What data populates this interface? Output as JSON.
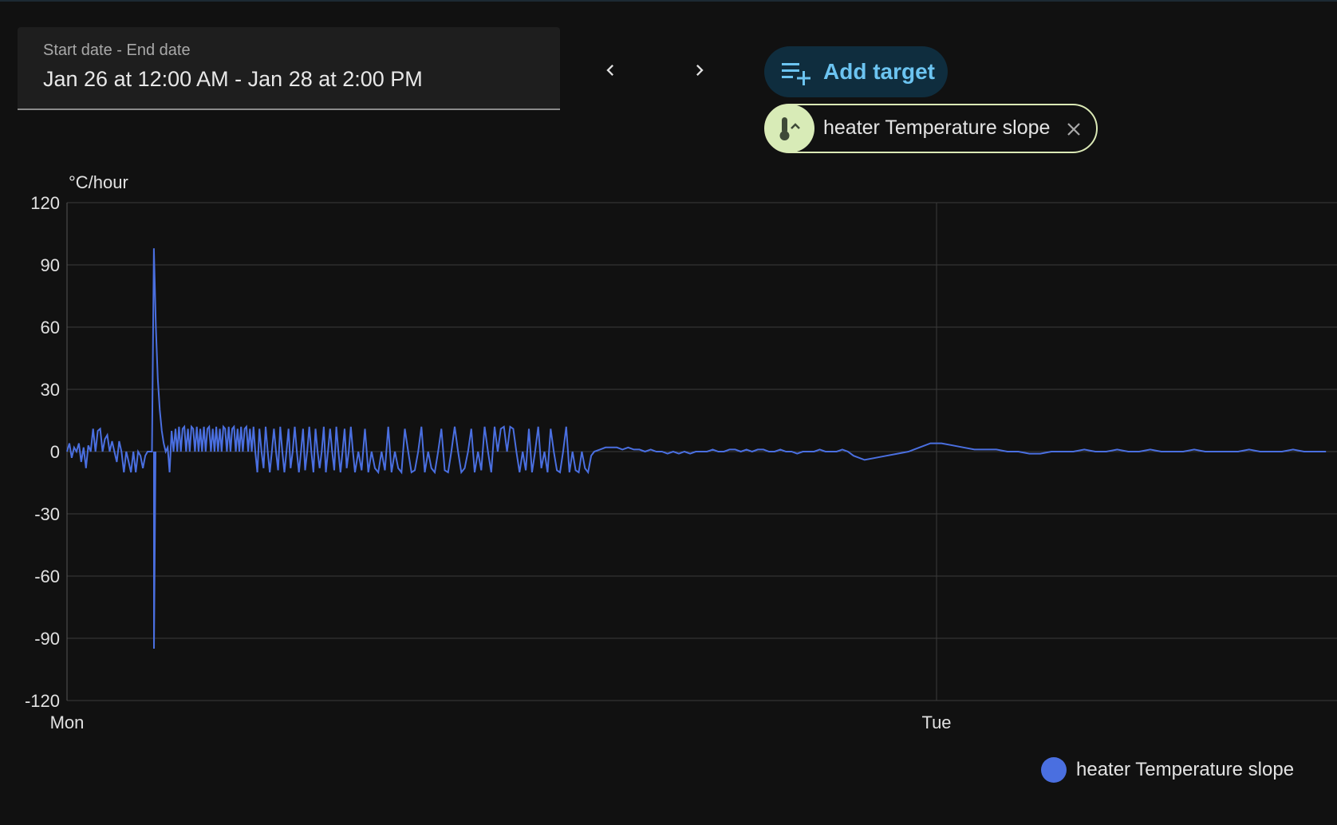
{
  "date_range": {
    "label": "Start date - End date",
    "value": "Jan 26 at 12:00 AM - Jan 28 at 2:00 PM"
  },
  "navigation": {
    "prev_icon": "chevron-left-icon",
    "next_icon": "chevron-right-icon"
  },
  "add_target": {
    "label": "Add target",
    "icon": "playlist-plus-icon"
  },
  "target_chip": {
    "label": "heater Temperature slope",
    "icon": "thermometer-chevron-up-icon"
  },
  "colors": {
    "series": "#4a6fe0",
    "accent": "#6cc4f1",
    "chip_bg": "#d8ebb7",
    "grid": "#3a3a3a"
  },
  "chart_data": {
    "type": "line",
    "unit": "°C/hour",
    "y_range": [
      -120,
      120
    ],
    "y_ticks": [
      "120",
      "90",
      "60",
      "30",
      "0",
      "-30",
      "-60",
      "-90",
      "-120"
    ],
    "x_ticks": [
      "Mon",
      "Tue"
    ],
    "legend_position": "bottom-right",
    "series": [
      {
        "name": "heater Temperature slope",
        "samples": [
          0,
          4,
          -3,
          2,
          0,
          4,
          -5,
          2,
          -8,
          3,
          0,
          11,
          0,
          10,
          11,
          0,
          6,
          8,
          0,
          5,
          0,
          -5,
          5,
          0,
          -10,
          0,
          -5,
          -10,
          0,
          -10,
          0,
          -2,
          -8,
          -2,
          0,
          0,
          0,
          98,
          60,
          35,
          20,
          10,
          4,
          0,
          2,
          -10,
          10,
          0,
          11,
          0,
          12,
          0,
          11,
          12,
          0,
          11,
          0,
          12,
          11,
          0,
          12,
          0,
          11,
          0,
          12,
          0,
          11,
          12,
          0,
          11,
          0,
          12,
          0,
          11,
          0,
          12,
          11,
          0,
          12,
          0,
          11,
          12,
          0,
          11,
          0,
          12,
          0,
          11,
          12,
          0,
          11,
          0,
          12,
          0,
          -10,
          11,
          0,
          -8,
          12,
          0,
          -10,
          0,
          11,
          0,
          -9,
          12,
          0,
          -10,
          0,
          11,
          -8,
          0,
          12,
          0,
          -10,
          0,
          11,
          -9,
          0,
          12,
          0,
          -10,
          11,
          0,
          -8,
          0,
          12,
          -10,
          0,
          11,
          0,
          -9,
          12,
          0,
          -10,
          0,
          11,
          -8,
          0,
          12,
          0,
          -10,
          0,
          -9,
          11,
          -10,
          0,
          -8,
          -10,
          0,
          -9,
          12,
          -10,
          0,
          -8,
          -10,
          11,
          0,
          -10,
          -9,
          0,
          12,
          -10,
          0,
          -8,
          -10,
          0,
          11,
          -9,
          -10,
          0,
          12,
          0,
          -10,
          -8,
          0,
          11,
          -10,
          0,
          -9,
          12,
          0,
          -10,
          12,
          0,
          11,
          12,
          0,
          12,
          11,
          0,
          -10,
          0,
          -9,
          11,
          -10,
          0,
          12,
          -8,
          0,
          -10,
          11,
          0,
          -9,
          -10,
          0,
          12,
          -10,
          0,
          -9,
          -10,
          0,
          -8,
          -10,
          -2,
          0,
          1,
          2,
          2,
          2,
          1,
          2,
          1,
          1,
          0,
          1,
          0,
          0,
          -1,
          0,
          -1,
          0,
          -1,
          0,
          0,
          0,
          1,
          0,
          0,
          1,
          1,
          0,
          1,
          0,
          1,
          1,
          0,
          0,
          1,
          0,
          0,
          -1,
          0,
          0,
          0,
          1,
          0,
          0,
          0,
          1,
          0,
          -2,
          -4,
          -3,
          -2,
          -1,
          0,
          2,
          4,
          4,
          3,
          2,
          1,
          1,
          1,
          0,
          0,
          -1,
          -1,
          0,
          0,
          0,
          1,
          0,
          0,
          1,
          0,
          0,
          1,
          0,
          0,
          0,
          1,
          0,
          0,
          0,
          0,
          1,
          0,
          0,
          0,
          1,
          0,
          0,
          0
        ]
      }
    ]
  }
}
